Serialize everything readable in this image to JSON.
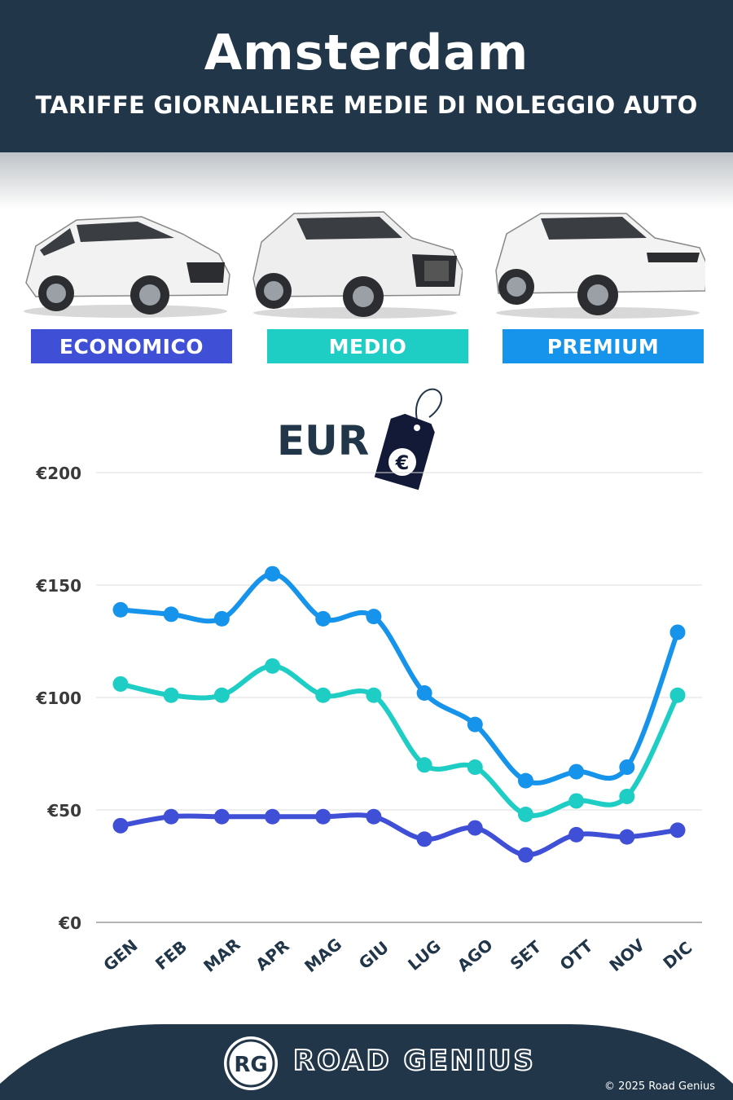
{
  "header": {
    "title": "Amsterdam",
    "subtitle": "TARIFFE GIORNALIERE MEDIE DI NOLEGGIO AUTO"
  },
  "categories_badges": [
    {
      "label": "ECONOMICO",
      "color": "#3f4fd6"
    },
    {
      "label": "MEDIO",
      "color": "#1ecdc4"
    },
    {
      "label": "PREMIUM",
      "color": "#1693ea"
    }
  ],
  "currency_label": "EUR",
  "currency_symbol": "€",
  "brand": {
    "name": "ROAD GENIUS",
    "monogram": "RG",
    "copyright": "© 2025 Road Genius"
  },
  "colors": {
    "navy": "#223649",
    "economico": "#3f4fd6",
    "medio": "#1ecdc4",
    "premium": "#1693ea"
  },
  "chart_data": {
    "type": "line",
    "title": "",
    "xlabel": "",
    "ylabel": "",
    "categories": [
      "GEN",
      "FEB",
      "MAR",
      "APR",
      "MAG",
      "GIU",
      "LUG",
      "AGO",
      "SET",
      "OTT",
      "NOV",
      "DIC"
    ],
    "ylim": [
      0,
      200
    ],
    "yticks": [
      "€0",
      "€50",
      "€100",
      "€150",
      "€200"
    ],
    "ytick_values": [
      0,
      50,
      100,
      150,
      200
    ],
    "grid": true,
    "legend": "none",
    "series": [
      {
        "key": "premium",
        "color": "#1693ea",
        "values": [
          139,
          137,
          135,
          155,
          135,
          136,
          102,
          88,
          63,
          67,
          69,
          129
        ]
      },
      {
        "key": "medio",
        "color": "#1ecdc4",
        "values": [
          106,
          101,
          101,
          114,
          101,
          101,
          70,
          69,
          48,
          54,
          56,
          101
        ]
      },
      {
        "key": "economico",
        "color": "#3f4fd6",
        "values": [
          43,
          47,
          47,
          47,
          47,
          47,
          37,
          42,
          30,
          39,
          38,
          41
        ]
      }
    ]
  }
}
